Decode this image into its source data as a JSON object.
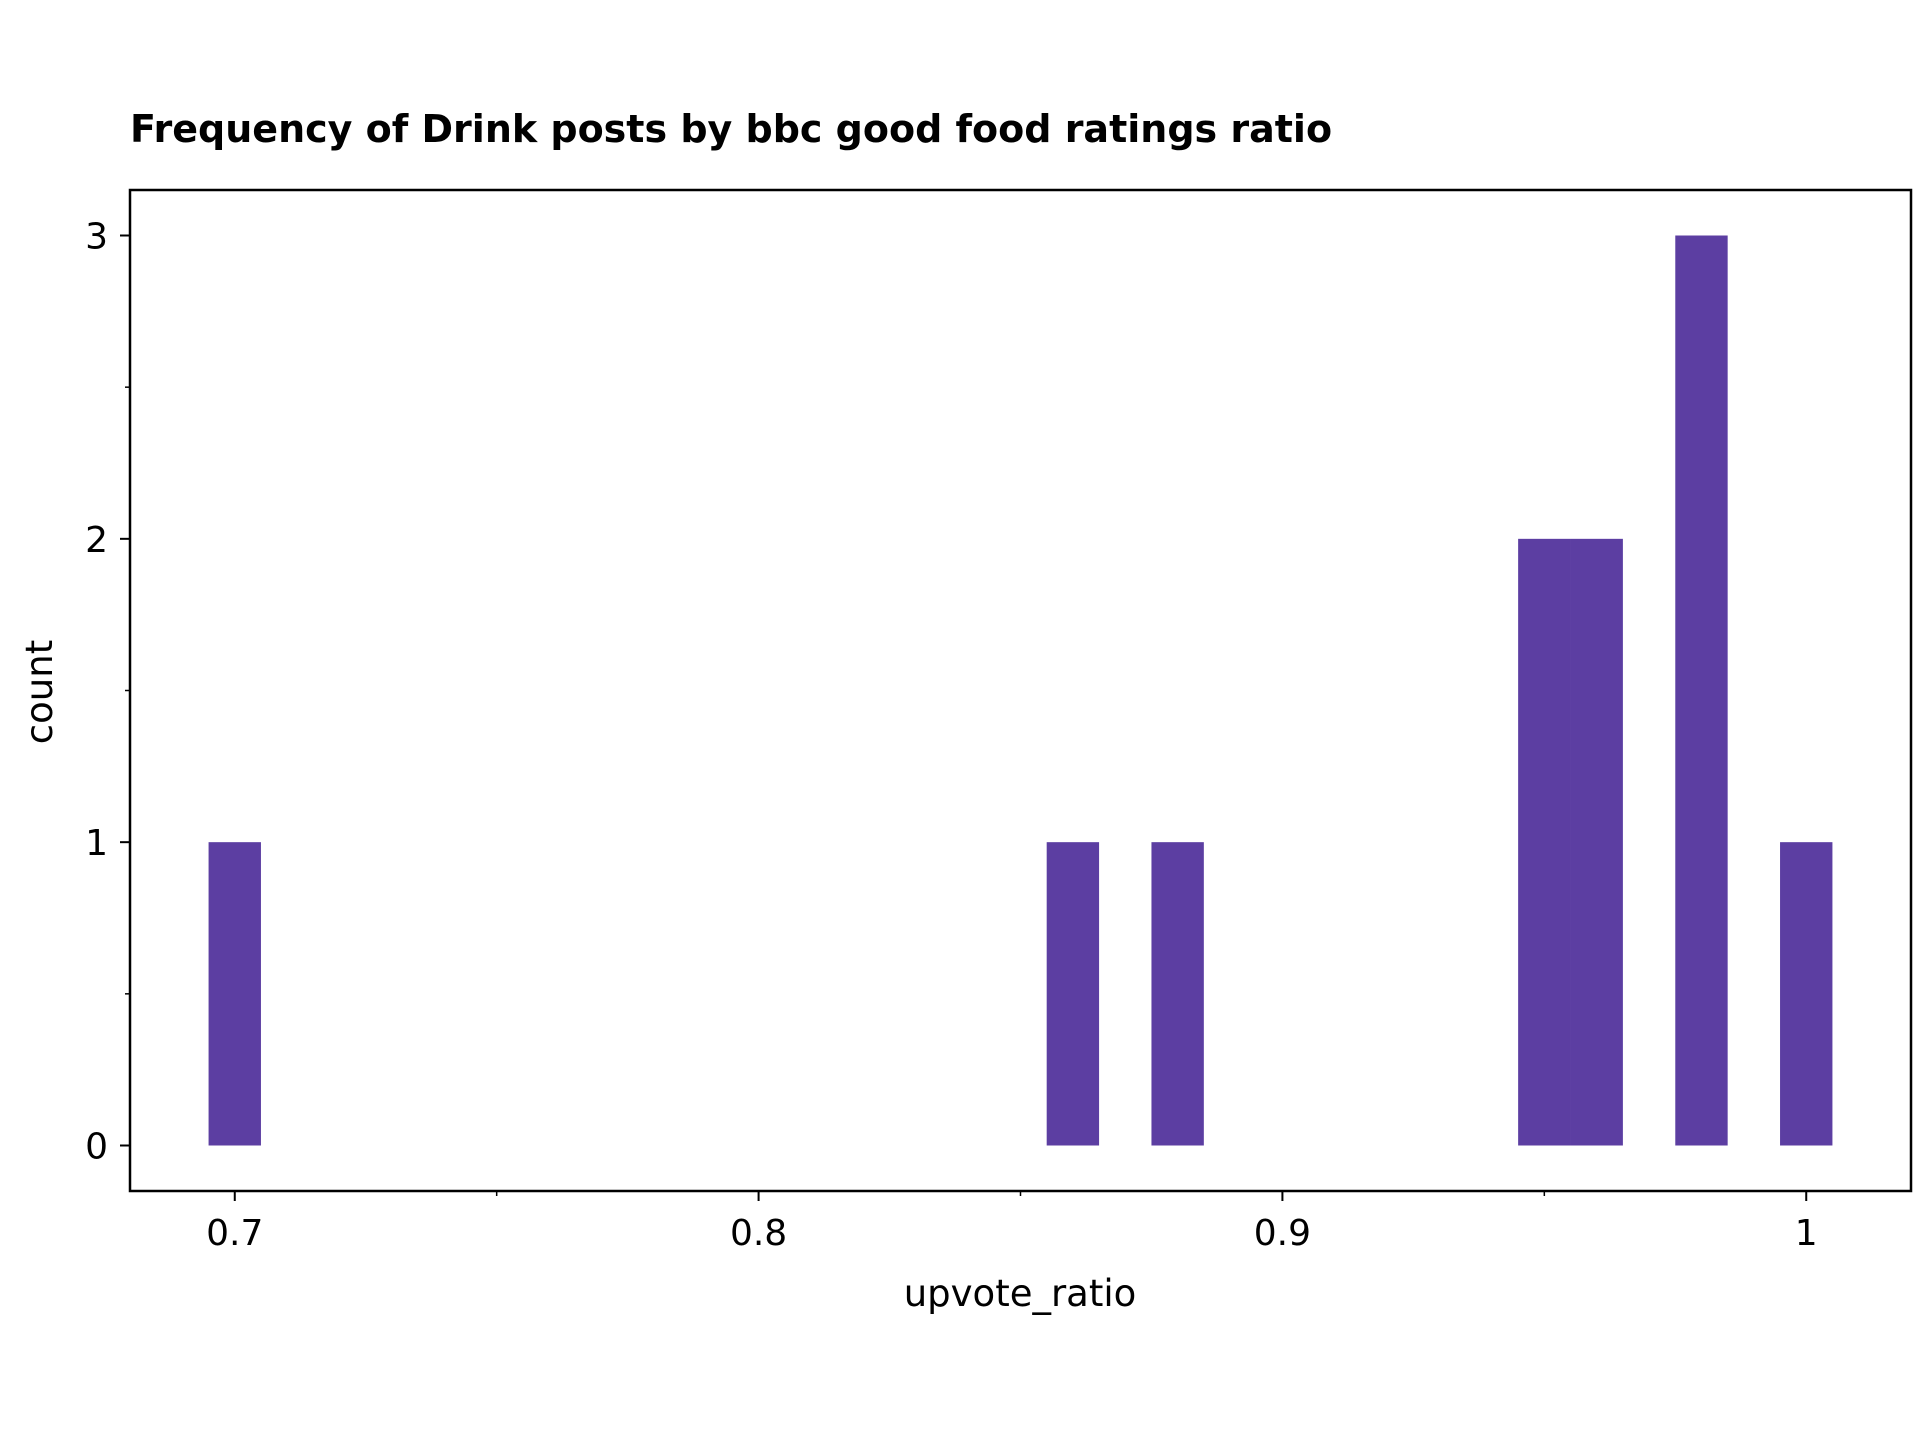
{
  "chart_data": {
    "type": "bar",
    "title": "Frequency of Drink posts by bbc good food ratings ratio",
    "xlabel": "upvote_ratio",
    "ylabel": "count",
    "bar_width": 0.01,
    "bars": [
      {
        "x": 0.7,
        "count": 1
      },
      {
        "x": 0.86,
        "count": 1
      },
      {
        "x": 0.88,
        "count": 1
      },
      {
        "x": 0.95,
        "count": 2
      },
      {
        "x": 0.96,
        "count": 2
      },
      {
        "x": 0.98,
        "count": 3
      },
      {
        "x": 1.0,
        "count": 1
      }
    ],
    "xlim": [
      0.68,
      1.02
    ],
    "ylim": [
      -0.15,
      3.15
    ],
    "x_ticks": [
      {
        "value": 0.7,
        "label": "0.7"
      },
      {
        "value": 0.8,
        "label": "0.8"
      },
      {
        "value": 0.9,
        "label": "0.9"
      },
      {
        "value": 1.0,
        "label": "1"
      }
    ],
    "x_minor_ticks": [
      0.75,
      0.85,
      0.95
    ],
    "y_ticks": [
      {
        "value": 0,
        "label": "0"
      },
      {
        "value": 1,
        "label": "1"
      },
      {
        "value": 2,
        "label": "2"
      },
      {
        "value": 3,
        "label": "3"
      }
    ],
    "y_minor_ticks": [
      0.5,
      1.5,
      2.5
    ],
    "grid": false,
    "bar_color": "#5c3ea2"
  }
}
